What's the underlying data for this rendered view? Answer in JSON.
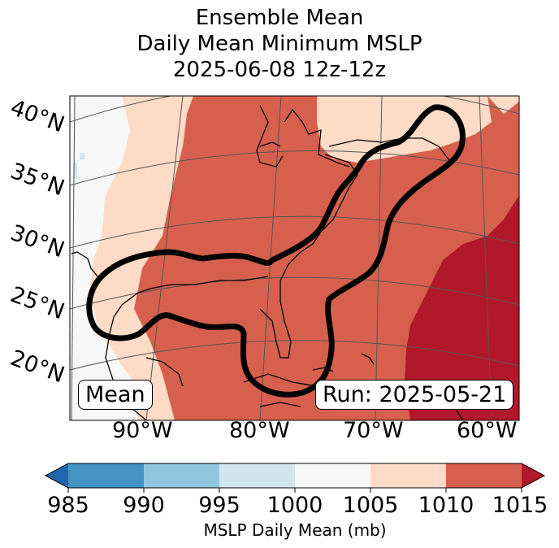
{
  "title": {
    "line1": "Ensemble Mean",
    "line2": "Daily Mean Minimum MSLP",
    "line3": "2025-06-08 12z-12z"
  },
  "map": {
    "lat_labels": [
      "40°N",
      "35°N",
      "30°N",
      "25°N",
      "20°N"
    ],
    "lon_labels": [
      "90°W",
      "80°W",
      "70°W",
      "60°W"
    ],
    "stat_label": "Mean",
    "run_label": "Run: 2025-05-21"
  },
  "colorbar": {
    "ticks": [
      "985",
      "990",
      "995",
      "1000",
      "1005",
      "1010",
      "1015"
    ],
    "colors": [
      "#2166ac",
      "#4393c3",
      "#92c5de",
      "#d1e5f0",
      "#f7f7f7",
      "#fddbc7",
      "#d6604d",
      "#b2182b"
    ],
    "label": "MSLP Daily Mean (mb)"
  }
}
